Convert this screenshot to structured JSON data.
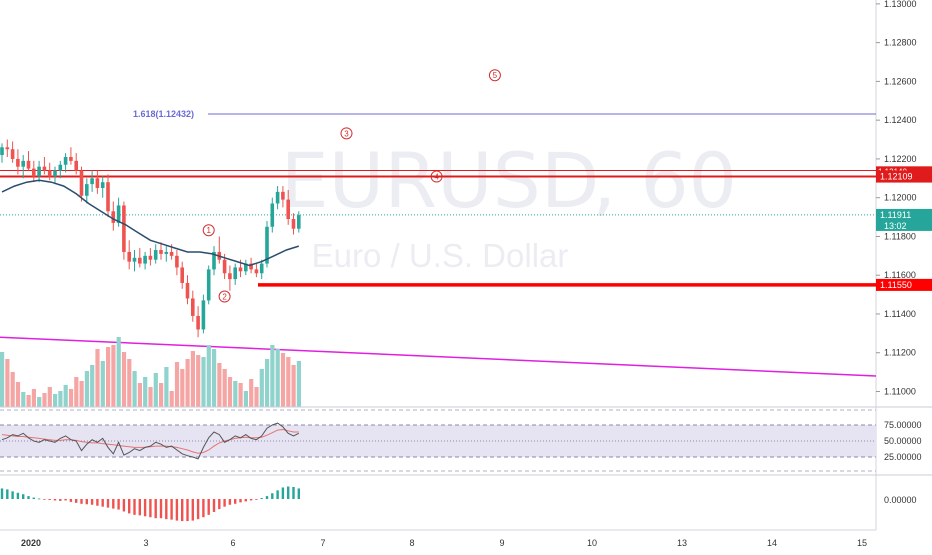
{
  "watermark": {
    "symbol": "EURUSD",
    "interval": ", 60",
    "description": "Euro / U.S. Dollar"
  },
  "fib": {
    "label": "1.618(1.12432)",
    "level": 1.12432
  },
  "wave_labels": [
    "1",
    "2",
    "3",
    "4",
    "5"
  ],
  "price_axis": {
    "ticks": [
      "1.13000",
      "1.12800",
      "1.12600",
      "1.12400",
      "1.12200",
      "1.12000",
      "1.11800",
      "1.11600",
      "1.11400",
      "1.11200",
      "1.11000"
    ],
    "tick_values": [
      1.13,
      1.128,
      1.126,
      1.124,
      1.122,
      1.12,
      1.118,
      1.116,
      1.114,
      1.112,
      1.11
    ],
    "range": [
      1.1092,
      1.1302
    ]
  },
  "price_tags": {
    "resistance_top": {
      "text": "1.12140",
      "value": 1.1214
    },
    "resistance": {
      "text": "1.12109",
      "value": 1.12109
    },
    "current": {
      "text": "1.11911",
      "value": 1.11911
    },
    "countdown": "13:02",
    "support": {
      "text": "1.11550",
      "value": 1.1155
    }
  },
  "rsi": {
    "ticks": [
      "75.00000",
      "50.00000",
      "25.00000"
    ],
    "tick_values": [
      75,
      50,
      25
    ]
  },
  "macd": {
    "ticks": [
      "0.00000"
    ]
  },
  "time_axis": {
    "labels": [
      "2020",
      "3",
      "6",
      "7",
      "8",
      "9",
      "10",
      "13",
      "14",
      "15"
    ]
  },
  "colors": {
    "bull": "#26a69a",
    "bear": "#ef5350",
    "ma": "#2a4d6e",
    "resistance": "#e01b1b",
    "support": "#ff0000",
    "fib": "#6b6bd6",
    "trend": "#e020e0",
    "current": "#26a69a",
    "rsi": "#555555",
    "rsi_signal": "#e57373",
    "rsi_band": "#e6e3f2"
  },
  "chart_data": {
    "type": "candlestick",
    "title": "EURUSD, 60",
    "y_range": [
      1.1092,
      1.1302
    ],
    "ohlc": [
      [
        1.1222,
        1.1228,
        1.1218,
        1.1226
      ],
      [
        1.1226,
        1.123,
        1.1221,
        1.1225
      ],
      [
        1.1225,
        1.1229,
        1.1218,
        1.122
      ],
      [
        1.122,
        1.1225,
        1.1212,
        1.1216
      ],
      [
        1.1216,
        1.1222,
        1.121,
        1.1219
      ],
      [
        1.1219,
        1.1224,
        1.1214,
        1.1215
      ],
      [
        1.1215,
        1.1219,
        1.1208,
        1.1211
      ],
      [
        1.1211,
        1.1219,
        1.1208,
        1.1216
      ],
      [
        1.1216,
        1.1221,
        1.1212,
        1.1214
      ],
      [
        1.1214,
        1.1218,
        1.1209,
        1.1211
      ],
      [
        1.1211,
        1.1216,
        1.1207,
        1.1214
      ],
      [
        1.1214,
        1.1219,
        1.121,
        1.1217
      ],
      [
        1.1217,
        1.1223,
        1.1213,
        1.1221
      ],
      [
        1.1221,
        1.1226,
        1.1217,
        1.1219
      ],
      [
        1.1219,
        1.1223,
        1.1212,
        1.1214
      ],
      [
        1.1214,
        1.1216,
        1.1198,
        1.1201
      ],
      [
        1.1201,
        1.121,
        1.1197,
        1.1207
      ],
      [
        1.1207,
        1.1214,
        1.1203,
        1.121
      ],
      [
        1.121,
        1.1214,
        1.1202,
        1.1205
      ],
      [
        1.1205,
        1.1211,
        1.12,
        1.1208
      ],
      [
        1.1208,
        1.1212,
        1.119,
        1.1193
      ],
      [
        1.1193,
        1.1198,
        1.1183,
        1.1187
      ],
      [
        1.1187,
        1.12,
        1.1185,
        1.1196
      ],
      [
        1.1196,
        1.1198,
        1.1168,
        1.1172
      ],
      [
        1.1172,
        1.1178,
        1.1163,
        1.1167
      ],
      [
        1.1167,
        1.1173,
        1.1162,
        1.1169
      ],
      [
        1.1169,
        1.1174,
        1.1164,
        1.1166
      ],
      [
        1.1166,
        1.1172,
        1.1163,
        1.117
      ],
      [
        1.117,
        1.1174,
        1.1165,
        1.1168
      ],
      [
        1.1168,
        1.1176,
        1.1166,
        1.1173
      ],
      [
        1.1173,
        1.1177,
        1.1168,
        1.1171
      ],
      [
        1.1171,
        1.1175,
        1.1167,
        1.1172
      ],
      [
        1.1172,
        1.1176,
        1.1168,
        1.117
      ],
      [
        1.117,
        1.1173,
        1.116,
        1.1164
      ],
      [
        1.1164,
        1.1167,
        1.1153,
        1.1156
      ],
      [
        1.1156,
        1.116,
        1.1145,
        1.1148
      ],
      [
        1.1148,
        1.1152,
        1.1136,
        1.1139
      ],
      [
        1.1139,
        1.1144,
        1.1128,
        1.1132
      ],
      [
        1.1132,
        1.115,
        1.113,
        1.1147
      ],
      [
        1.1147,
        1.1165,
        1.1145,
        1.1163
      ],
      [
        1.1163,
        1.1175,
        1.116,
        1.1172
      ],
      [
        1.1172,
        1.118,
        1.1166,
        1.1168
      ],
      [
        1.1168,
        1.1171,
        1.1158,
        1.1161
      ],
      [
        1.1161,
        1.1165,
        1.1152,
        1.1158
      ],
      [
        1.1158,
        1.1166,
        1.1155,
        1.1164
      ],
      [
        1.1164,
        1.1168,
        1.1159,
        1.1162
      ],
      [
        1.1162,
        1.1168,
        1.116,
        1.1166
      ],
      [
        1.1166,
        1.1169,
        1.1161,
        1.1163
      ],
      [
        1.1163,
        1.1166,
        1.1159,
        1.1161
      ],
      [
        1.1161,
        1.1168,
        1.1158,
        1.1166
      ],
      [
        1.1166,
        1.1188,
        1.1164,
        1.1185
      ],
      [
        1.1185,
        1.12,
        1.1182,
        1.1197
      ],
      [
        1.1197,
        1.1206,
        1.1194,
        1.1203
      ],
      [
        1.1203,
        1.1206,
        1.1195,
        1.1199
      ],
      [
        1.1199,
        1.1204,
        1.1186,
        1.1189
      ],
      [
        1.1189,
        1.1192,
        1.1181,
        1.1184
      ],
      [
        1.1184,
        1.1193,
        1.1182,
        1.1191
      ]
    ],
    "moving_average": [
      1.1203,
      1.1206,
      1.1208,
      1.1209,
      1.1208,
      1.1206,
      1.1202,
      1.1197,
      1.1193,
      1.1189,
      1.1186,
      1.1182,
      1.1178,
      1.1176,
      1.1174,
      1.1172,
      1.1172,
      1.1171,
      1.1169,
      1.1167,
      1.1165,
      1.1167,
      1.117,
      1.1173,
      1.1175
    ],
    "levels": {
      "resistance_top": 1.1214,
      "resistance": 1.12109,
      "support": 1.1155,
      "fib_1_618": 1.12432,
      "current": 1.11911
    },
    "trendline": {
      "y_start": 1.1128,
      "y_end": 1.1108
    },
    "volume": [
      55,
      48,
      35,
      25,
      15,
      12,
      18,
      10,
      14,
      20,
      13,
      16,
      22,
      18,
      30,
      26,
      36,
      42,
      58,
      46,
      60,
      62,
      70,
      55,
      48,
      36,
      24,
      30,
      20,
      34,
      24,
      40,
      16,
      45,
      38,
      48,
      56,
      52,
      50,
      62,
      58,
      44,
      38,
      30,
      26,
      24,
      16,
      28,
      20,
      38,
      48,
      62,
      58,
      54,
      50,
      42,
      46
    ],
    "rsi": [
      52,
      55,
      60,
      58,
      62,
      55,
      50,
      48,
      52,
      50,
      48,
      54,
      58,
      52,
      50,
      35,
      45,
      52,
      48,
      54,
      40,
      30,
      48,
      28,
      32,
      38,
      35,
      40,
      42,
      48,
      45,
      40,
      42,
      36,
      30,
      27,
      25,
      22,
      40,
      55,
      64,
      60,
      48,
      52,
      58,
      55,
      60,
      54,
      52,
      58,
      70,
      75,
      78,
      72,
      62,
      58,
      62
    ],
    "rsi_signal": [
      60,
      59,
      58,
      57,
      57,
      56,
      55,
      54,
      53,
      52,
      51,
      51,
      52,
      52,
      51,
      49,
      48,
      47,
      47,
      46,
      45,
      44,
      43,
      42,
      41,
      40,
      40,
      40,
      41,
      42,
      42,
      42,
      41,
      40,
      38,
      36,
      33,
      31,
      32,
      36,
      42,
      47,
      50,
      52,
      54,
      55,
      56,
      55,
      55,
      56,
      59,
      63,
      67,
      68,
      66,
      64,
      64
    ],
    "macd_hist": [
      0.00022,
      0.0002,
      0.00016,
      0.00013,
      0.0001,
      6e-05,
      3e-05,
      1e-05,
      -1e-05,
      -2e-05,
      -3e-05,
      -4e-05,
      -3e-05,
      -6e-05,
      -8e-05,
      -0.0001,
      -0.00011,
      -0.00012,
      -0.00014,
      -0.00016,
      -0.00018,
      -0.0002,
      -0.00022,
      -0.00026,
      -0.0003,
      -0.00033,
      -0.00034,
      -0.00036,
      -0.00038,
      -0.0004,
      -0.0004,
      -0.00042,
      -0.00043,
      -0.00045,
      -0.00046,
      -0.00046,
      -0.00045,
      -0.00042,
      -0.00038,
      -0.00033,
      -0.00027,
      -0.00021,
      -0.00016,
      -0.00012,
      -0.0001,
      -7e-05,
      -5e-05,
      -3e-05,
      -1e-05,
      2e-05,
      6e-05,
      0.00012,
      0.00018,
      0.00024,
      0.00026,
      0.00025,
      0.00022
    ]
  }
}
